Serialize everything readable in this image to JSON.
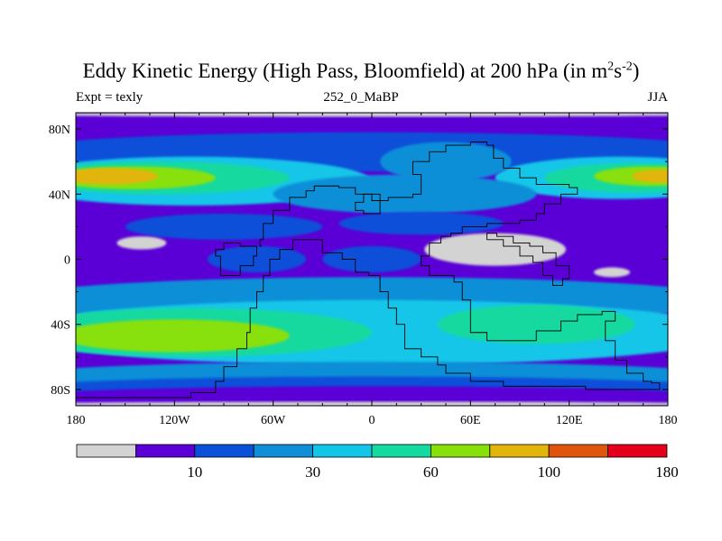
{
  "chart_data": {
    "type": "heatmap",
    "title": "Eddy Kinetic Energy (High Pass, Bloomfield) at 200 hPa (in m",
    "title_unit_sup1": "2",
    "title_unit_mid": "s",
    "title_unit_sup2": "-2",
    "title_close": ")",
    "subtitle_left": "Expt = texly",
    "subtitle_center": "252_0_MaBP",
    "subtitle_right": "JJA",
    "x_ticks": [
      {
        "value": -180,
        "label": "180"
      },
      {
        "value": -120,
        "label": "120W"
      },
      {
        "value": -60,
        "label": "60W"
      },
      {
        "value": 0,
        "label": "0"
      },
      {
        "value": 60,
        "label": "60E"
      },
      {
        "value": 120,
        "label": "120E"
      },
      {
        "value": 180,
        "label": "180"
      }
    ],
    "y_ticks": [
      {
        "value": 80,
        "label": "80N"
      },
      {
        "value": 40,
        "label": "40N"
      },
      {
        "value": 0,
        "label": "0"
      },
      {
        "value": -40,
        "label": "40S"
      },
      {
        "value": -80,
        "label": "80S"
      }
    ],
    "xlim": [
      -180,
      180
    ],
    "ylim": [
      -90,
      90
    ],
    "colorbar": {
      "colors": [
        "#d3d3d3",
        "#5a00d6",
        "#0a50d8",
        "#0f8fd8",
        "#12c6e8",
        "#14d9a0",
        "#88e00a",
        "#e2b50c",
        "#e0550c",
        "#e4001a"
      ],
      "labels": [
        {
          "after_bin": 1,
          "text": "10"
        },
        {
          "after_bin": 3,
          "text": "30"
        },
        {
          "after_bin": 5,
          "text": "60"
        },
        {
          "after_bin": 7,
          "text": "100"
        },
        {
          "after_bin": 9,
          "text": "180"
        }
      ]
    },
    "base_level": 1,
    "blobs": [
      {
        "lon": 0,
        "lat": 66,
        "rlon": 220,
        "rlat": 12,
        "level": 2
      },
      {
        "lon": -110,
        "lat": 48,
        "rlon": 110,
        "rlat": 15,
        "level": 4
      },
      {
        "lon": -130,
        "lat": 50,
        "rlon": 80,
        "rlat": 10,
        "level": 5
      },
      {
        "lon": -145,
        "lat": 50,
        "rlon": 50,
        "rlat": 7,
        "level": 6
      },
      {
        "lon": -160,
        "lat": 51,
        "rlon": 30,
        "rlat": 5,
        "level": 7
      },
      {
        "lon": 150,
        "lat": 50,
        "rlon": 75,
        "rlat": 13,
        "level": 4
      },
      {
        "lon": 160,
        "lat": 50,
        "rlon": 55,
        "rlat": 9,
        "level": 5
      },
      {
        "lon": 170,
        "lat": 51,
        "rlon": 35,
        "rlat": 6,
        "level": 6
      },
      {
        "lon": 176,
        "lat": 51,
        "rlon": 18,
        "rlat": 4,
        "level": 7
      },
      {
        "lon": 20,
        "lat": 40,
        "rlon": 80,
        "rlat": 12,
        "level": 3
      },
      {
        "lon": 45,
        "lat": 60,
        "rlon": 40,
        "rlat": 12,
        "level": 3
      },
      {
        "lon": -90,
        "lat": 20,
        "rlon": 60,
        "rlat": 8,
        "level": 2
      },
      {
        "lon": 30,
        "lat": 22,
        "rlon": 50,
        "rlat": 7,
        "level": 2
      },
      {
        "lon": -70,
        "lat": 0,
        "rlon": 30,
        "rlat": 8,
        "level": 2
      },
      {
        "lon": 0,
        "lat": 0,
        "rlon": 30,
        "rlat": 8,
        "level": 2
      },
      {
        "lon": 0,
        "lat": -25,
        "rlon": 220,
        "rlat": 14,
        "level": 3
      },
      {
        "lon": 0,
        "lat": -45,
        "rlon": 220,
        "rlat": 20,
        "level": 4
      },
      {
        "lon": -110,
        "lat": -45,
        "rlon": 110,
        "rlat": 15,
        "level": 5
      },
      {
        "lon": -120,
        "lat": -47,
        "rlon": 70,
        "rlat": 10,
        "level": 6
      },
      {
        "lon": 100,
        "lat": -40,
        "rlon": 60,
        "rlat": 12,
        "level": 5
      },
      {
        "lon": 0,
        "lat": -72,
        "rlon": 220,
        "rlat": 9,
        "level": 3
      },
      {
        "lon": 0,
        "lat": -80,
        "rlon": 220,
        "rlat": 8,
        "level": 2
      },
      {
        "lon": 0,
        "lat": -85,
        "rlon": 220,
        "rlat": 7,
        "level": 1
      },
      {
        "lon": 0,
        "lat": -89,
        "rlon": 220,
        "rlat": 1.5,
        "level": 0
      },
      {
        "lon": 0,
        "lat": 89,
        "rlon": 220,
        "rlat": 1.5,
        "level": 0
      },
      {
        "lon": 75,
        "lat": 6,
        "rlon": 43,
        "rlat": 10,
        "level": 0
      },
      {
        "lon": -140,
        "lat": 10,
        "rlon": 15,
        "rlat": 4,
        "level": 0
      },
      {
        "lon": 146,
        "lat": -8,
        "rlon": 11,
        "rlat": 3,
        "level": 0
      }
    ],
    "outlines": [
      [
        [
          -67,
          8
        ],
        [
          -68,
          12
        ],
        [
          -66,
          22
        ],
        [
          -60,
          30
        ],
        [
          -50,
          38
        ],
        [
          -40,
          42
        ],
        [
          -35,
          45
        ],
        [
          -20,
          44
        ],
        [
          -10,
          40
        ],
        [
          0,
          36
        ],
        [
          10,
          38
        ],
        [
          25,
          40
        ],
        [
          30,
          52
        ],
        [
          25,
          60
        ],
        [
          35,
          66
        ],
        [
          45,
          70
        ],
        [
          60,
          72
        ],
        [
          70,
          70
        ],
        [
          74,
          62
        ],
        [
          80,
          56
        ],
        [
          90,
          50
        ],
        [
          100,
          46
        ],
        [
          110,
          46
        ],
        [
          120,
          44
        ],
        [
          125,
          40
        ],
        [
          115,
          34
        ],
        [
          105,
          28
        ],
        [
          100,
          24
        ],
        [
          90,
          22
        ],
        [
          80,
          22
        ],
        [
          70,
          20
        ],
        [
          60,
          20
        ],
        [
          55,
          16
        ],
        [
          48,
          14
        ],
        [
          42,
          10
        ],
        [
          35,
          2
        ],
        [
          30,
          -4
        ],
        [
          35,
          -10
        ],
        [
          50,
          -14
        ],
        [
          55,
          -25
        ],
        [
          60,
          -45
        ],
        [
          70,
          -50
        ],
        [
          85,
          -50
        ],
        [
          100,
          -44
        ],
        [
          115,
          -38
        ],
        [
          125,
          -34
        ],
        [
          140,
          -32
        ],
        [
          148,
          -38
        ],
        [
          142,
          -50
        ],
        [
          148,
          -62
        ],
        [
          155,
          -70
        ],
        [
          165,
          -70
        ],
        [
          165,
          -75
        ],
        [
          170,
          -76
        ],
        [
          175,
          -80
        ],
        [
          150,
          -80
        ],
        [
          130,
          -78
        ],
        [
          110,
          -78
        ],
        [
          80,
          -75
        ],
        [
          60,
          -70
        ],
        [
          45,
          -65
        ],
        [
          40,
          -60
        ],
        [
          30,
          -55
        ],
        [
          20,
          -40
        ],
        [
          15,
          -30
        ],
        [
          10,
          -20
        ],
        [
          5,
          -10
        ],
        [
          -2,
          -8
        ],
        [
          -10,
          0
        ],
        [
          -18,
          4
        ],
        [
          -30,
          12
        ],
        [
          -40,
          12
        ],
        [
          -48,
          6
        ],
        [
          -56,
          0
        ],
        [
          -62,
          -10
        ],
        [
          -66,
          -20
        ],
        [
          -70,
          -30
        ],
        [
          -74,
          -45
        ],
        [
          -76,
          -55
        ],
        [
          -82,
          -66
        ],
        [
          -90,
          -75
        ],
        [
          -95,
          -82
        ],
        [
          -110,
          -85
        ],
        [
          -180,
          -87
        ]
      ],
      [
        [
          -70,
          8
        ],
        [
          -80,
          10
        ],
        [
          -90,
          6
        ],
        [
          -95,
          2
        ],
        [
          -92,
          -10
        ],
        [
          -80,
          -4
        ],
        [
          -72,
          2
        ],
        [
          -70,
          8
        ]
      ],
      [
        [
          -5,
          40
        ],
        [
          -5,
          35
        ],
        [
          -10,
          30
        ],
        [
          -5,
          28
        ],
        [
          5,
          34
        ],
        [
          5,
          40
        ],
        [
          -5,
          40
        ]
      ],
      [
        [
          70,
          12
        ],
        [
          80,
          8
        ],
        [
          90,
          2
        ],
        [
          98,
          -2
        ],
        [
          104,
          -10
        ],
        [
          110,
          -16
        ],
        [
          116,
          -12
        ],
        [
          120,
          -4
        ],
        [
          112,
          4
        ],
        [
          104,
          8
        ],
        [
          96,
          10
        ],
        [
          86,
          14
        ],
        [
          76,
          16
        ],
        [
          70,
          12
        ]
      ]
    ]
  }
}
